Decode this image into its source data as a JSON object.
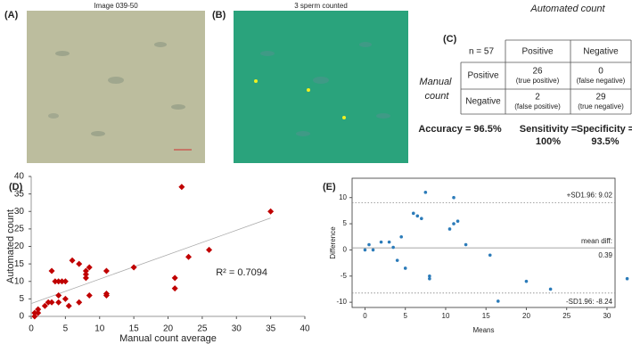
{
  "panels": {
    "a": "(A)",
    "b": "(B)",
    "c": "(C)",
    "d": "(D)",
    "e": "(E)"
  },
  "images": {
    "a_title": "Image 039-50",
    "b_title": "3 sperm counted"
  },
  "table": {
    "column_header": "Automated count",
    "row_header": "Manual count",
    "n": "n = 57",
    "columns": [
      "Positive",
      "Negative"
    ],
    "rows": [
      {
        "label": "Positive",
        "cells": [
          [
            "26",
            "(true positive)"
          ],
          [
            "0",
            "(false negative)"
          ]
        ]
      },
      {
        "label": "Negative",
        "cells": [
          [
            "2",
            "(false positive)"
          ],
          [
            "29",
            "(true negative)"
          ]
        ]
      }
    ],
    "metrics": [
      [
        "Accuracy = 96.5%"
      ],
      [
        "Sensitivity =",
        "100%"
      ],
      [
        "Specificity =",
        "93.5%"
      ]
    ]
  },
  "chart_data": [
    {
      "type": "scatter",
      "xlabel": "Manual count average",
      "ylabel": "Automated count",
      "color": "#c00000",
      "marker": "diamond",
      "trendline": true,
      "annotation": "R² = 0.7094",
      "x": [
        0.5,
        0.5,
        1,
        1,
        2,
        2.5,
        3,
        3,
        3.5,
        4,
        4,
        4,
        4.5,
        5,
        5,
        5.5,
        6,
        7,
        7,
        8,
        8,
        8,
        8.5,
        8.5,
        11,
        11,
        11,
        15,
        21,
        21,
        22,
        23,
        26,
        35
      ],
      "values": [
        0,
        1,
        2,
        1,
        3,
        4,
        13,
        4,
        10,
        10,
        6,
        4,
        10,
        10,
        5,
        3,
        16,
        15,
        4,
        12,
        13,
        11,
        14,
        6,
        6,
        6.5,
        13,
        14,
        11,
        8,
        37,
        17,
        19,
        30
      ],
      "xlim": [
        0,
        40
      ],
      "ylim": [
        0,
        40
      ],
      "xticks": [
        0,
        5,
        10,
        15,
        20,
        25,
        30,
        35,
        40
      ],
      "yticks": [
        0,
        5,
        10,
        15,
        20,
        25,
        30,
        35,
        40
      ]
    },
    {
      "type": "scatter",
      "xlabel": "Means",
      "ylabel": "Difference",
      "color": "#2b7bb9",
      "marker": "circle",
      "frame": true,
      "x": [
        0,
        0.5,
        1,
        2,
        3,
        3.5,
        4,
        4.5,
        5,
        6,
        6.5,
        7,
        7.5,
        8,
        8,
        10.5,
        11,
        11,
        11.5,
        12.5,
        15.5,
        16.5,
        20,
        23,
        32.5
      ],
      "values": [
        0,
        1,
        0,
        1.5,
        1.5,
        0.5,
        -2,
        2.5,
        -3.5,
        7,
        6.5,
        6,
        11,
        -5,
        -5.5,
        4,
        5,
        10,
        5.5,
        1,
        -1,
        -9.8,
        -6,
        -7.5,
        -5.5
      ],
      "hlines": [
        {
          "value": 9.02,
          "style": "dotted",
          "label": [
            "+SD1.96: 9.02"
          ]
        },
        {
          "value": 0.39,
          "style": "solid",
          "label": [
            "mean diff:",
            "0.39"
          ]
        },
        {
          "value": -8.24,
          "style": "dotted",
          "label": [
            "-SD1.96: -8.24"
          ]
        }
      ],
      "xlim": [
        -1.6,
        31
      ],
      "ylim": [
        -11,
        13.7
      ],
      "xticks": [
        0,
        5,
        10,
        15,
        20,
        25,
        30
      ],
      "yticks": [
        -10,
        -5,
        0,
        5,
        10
      ]
    }
  ]
}
